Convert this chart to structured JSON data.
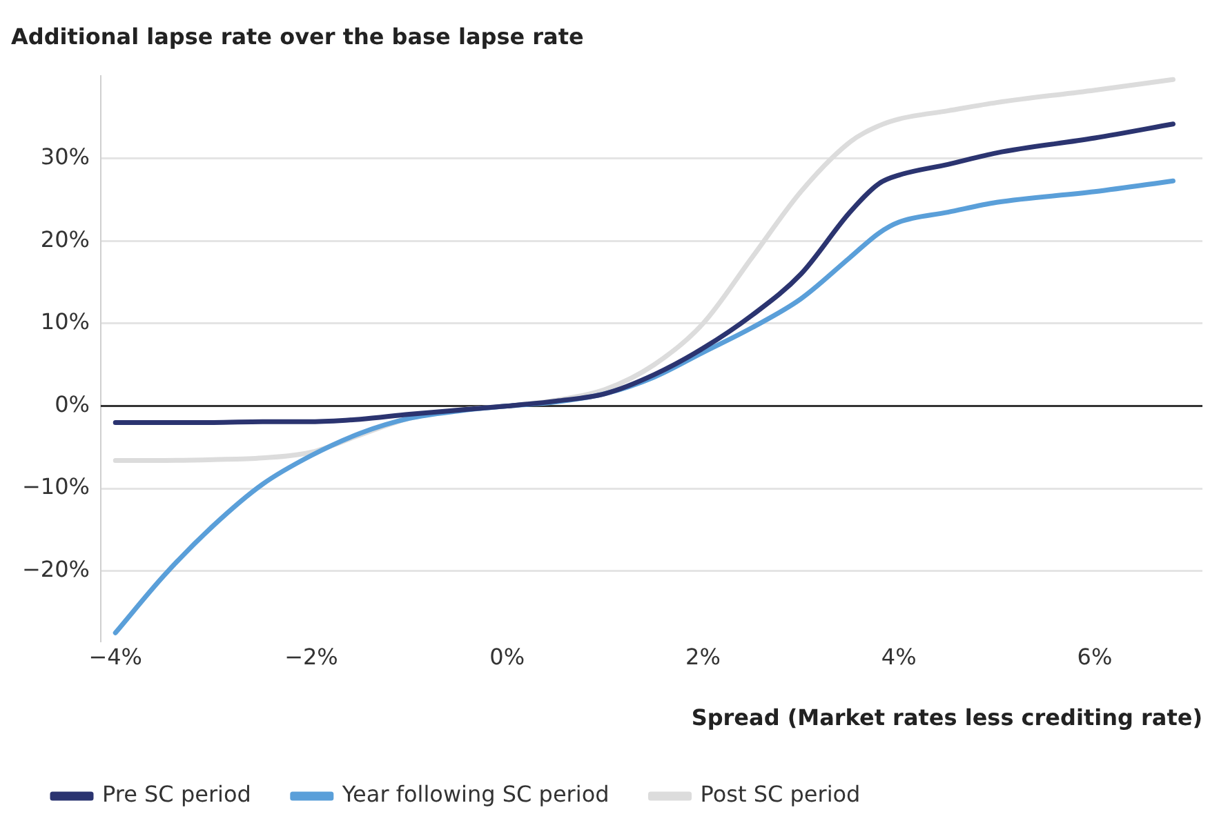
{
  "chart_data": {
    "type": "line",
    "title": "Additional lapse rate over the base lapse rate",
    "xlabel": "Spread (Market rates less crediting rate)",
    "xlim": [
      -4.15,
      7.1
    ],
    "ylim": [
      -28.5,
      40
    ],
    "xticks": [
      {
        "value": -4,
        "label": "−4%"
      },
      {
        "value": -2,
        "label": "−2%"
      },
      {
        "value": 0,
        "label": "0%"
      },
      {
        "value": 2,
        "label": "2%"
      },
      {
        "value": 4,
        "label": "4%"
      },
      {
        "value": 6,
        "label": "6%"
      }
    ],
    "yticks": [
      {
        "value": -20,
        "label": "−20%"
      },
      {
        "value": -10,
        "label": "−10%"
      },
      {
        "value": 0,
        "label": "0%"
      },
      {
        "value": 10,
        "label": "10%"
      },
      {
        "value": 20,
        "label": "20%"
      },
      {
        "value": 30,
        "label": "30%"
      }
    ],
    "x": [
      -4,
      -3.5,
      -3,
      -2.5,
      -2,
      -1.5,
      -1,
      -0.5,
      0,
      0.5,
      1,
      1.5,
      2,
      2.5,
      3,
      3.5,
      3.8,
      4,
      4.5,
      5,
      6,
      6.8
    ],
    "series": [
      {
        "name": "Pre SC period",
        "color": "#2b3470",
        "values": [
          -2,
          -2,
          -2,
          -1.9,
          -1.9,
          -1.6,
          -1,
          -0.5,
          0,
          0.6,
          1.5,
          3.8,
          7,
          11,
          16,
          23.5,
          27,
          28,
          29.3,
          30.7,
          32.5,
          34.2
        ]
      },
      {
        "name": "Year following SC period",
        "color": "#5a9fd9",
        "values": [
          -27.5,
          -20.5,
          -14.5,
          -9.5,
          -6,
          -3.3,
          -1.5,
          -0.6,
          0,
          0.5,
          1.5,
          3.5,
          6.5,
          9.5,
          13,
          18,
          21,
          22.3,
          23.5,
          24.7,
          26,
          27.3
        ]
      },
      {
        "name": "Post SC period",
        "color": "#dcdcdc",
        "values": [
          -6.6,
          -6.6,
          -6.5,
          -6.3,
          -5.6,
          -3.5,
          -1.5,
          -0.5,
          0,
          0.7,
          2,
          5,
          10,
          18,
          26,
          32,
          34,
          34.8,
          35.8,
          36.8,
          38.3,
          39.6
        ]
      }
    ],
    "ref_lines": [
      {
        "axis": "y",
        "value": 0,
        "color": "#333333"
      }
    ],
    "grid": "y",
    "legend": "bottom left",
    "marker": "none",
    "line_style": "solid"
  }
}
